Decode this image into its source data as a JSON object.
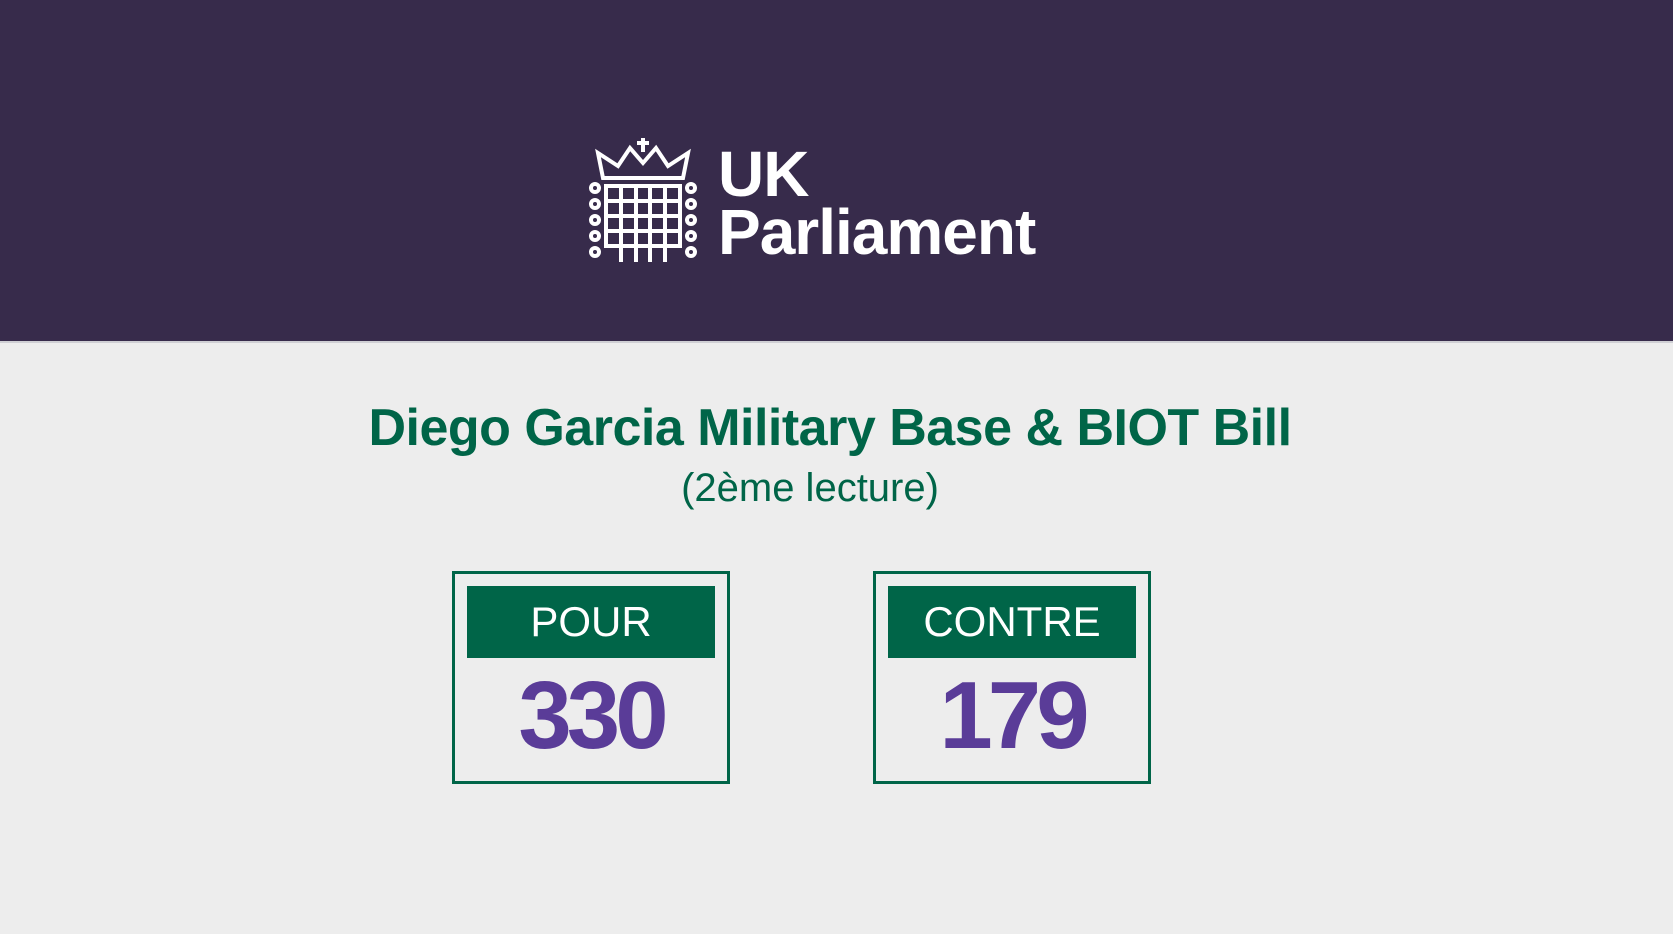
{
  "header": {
    "logo_text_line1": "UK",
    "logo_text_line2": "Parliament",
    "logo_icon": "portcullis-icon",
    "background": "#372b4b"
  },
  "main": {
    "title": "Diego Garcia Military Base & BIOT Bill",
    "subtitle": "(2ème lecture)",
    "results": [
      {
        "label": "POUR",
        "value": "330"
      },
      {
        "label": "CONTRE",
        "value": "179"
      }
    ],
    "colors": {
      "green": "#006548",
      "number": "#5a3c98",
      "background": "#ededed"
    }
  }
}
